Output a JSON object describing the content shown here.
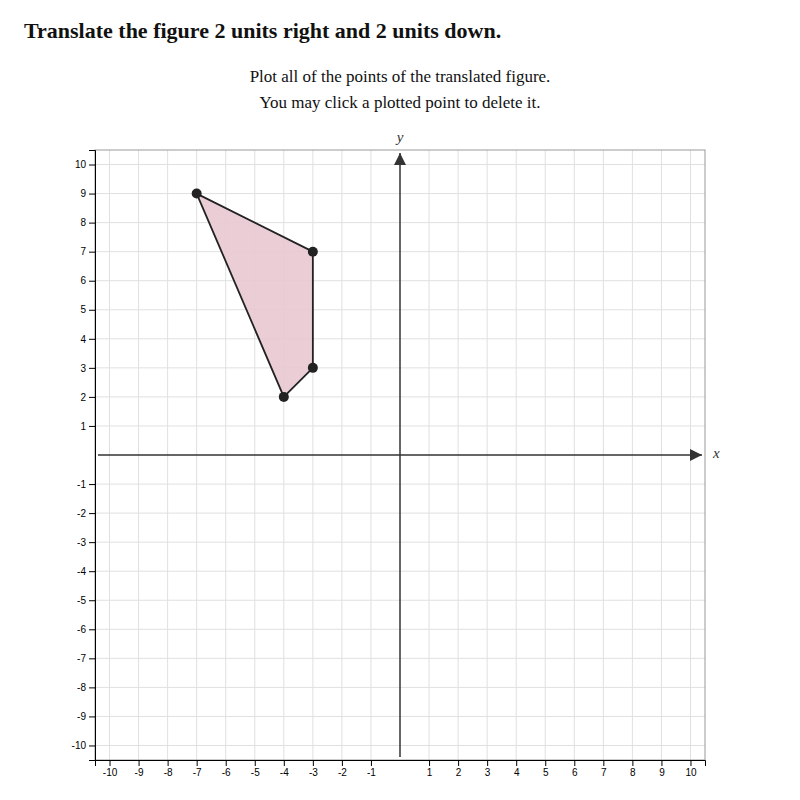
{
  "chart_data": {
    "type": "polygon",
    "title": "Translate the figure 2 units right and 2 units down.",
    "subtitle": [
      "Plot all of the points of the translated figure.",
      "You may click a plotted point to delete it."
    ],
    "xlabel": "x",
    "ylabel": "y",
    "x": [
      -7,
      -3,
      -3,
      -4
    ],
    "values": [
      9,
      7,
      3,
      2
    ],
    "color": "#e8c8d0",
    "xlim": [
      -10.5,
      10.5
    ],
    "ylim": [
      -10.5,
      10.5
    ],
    "xticks": [
      -10,
      -9,
      -8,
      -7,
      -6,
      -5,
      -4,
      -3,
      -2,
      -1,
      1,
      2,
      3,
      4,
      5,
      6,
      7,
      8,
      9,
      10
    ],
    "yticks": [
      -10,
      -9,
      -8,
      -7,
      -6,
      -5,
      -4,
      -3,
      -2,
      -1,
      1,
      2,
      3,
      4,
      5,
      6,
      7,
      8,
      9,
      10
    ],
    "grid": true
  }
}
